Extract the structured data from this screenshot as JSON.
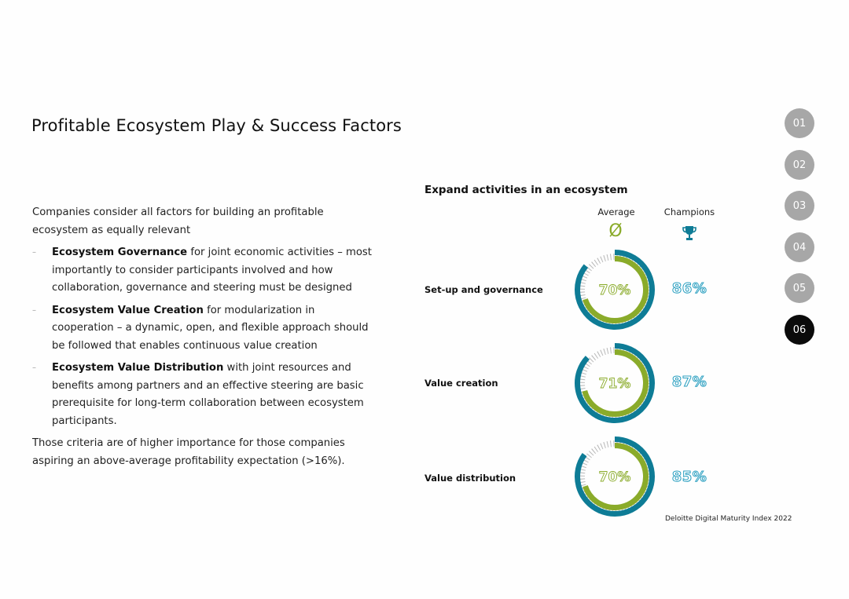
{
  "page": {
    "title": "Profitable Ecosystem Play & Success Factors"
  },
  "text": {
    "intro": "Companies consider all factors for building an profitable ecosystem as equally relevant",
    "bullets": [
      {
        "bold": "Ecosystem Governance",
        "rest": " for joint economic activities – most importantly to consider participants involved and how collaboration, governance and steering must be designed"
      },
      {
        "bold": "Ecosystem Value Creation",
        "rest": " for modularization in cooperation – a dynamic, open, and flexible approach should be followed that enables continuous value creation"
      },
      {
        "bold": "Ecosystem Value Distribution",
        "rest": " with joint resources and benefits among partners and an effective steering are basic prerequisite for long-term collaboration between ecosystem participants."
      }
    ],
    "closing": "Those criteria are of higher importance for those companies aspiring an above-average profitability expectation (>16%)."
  },
  "nav": {
    "items": [
      "01",
      "02",
      "03",
      "04",
      "05",
      "06"
    ],
    "active_index": 5
  },
  "source": "Deloitte Digital Maturity Index 2022",
  "colors": {
    "average": "#8aab2a",
    "champions": "#0e7c96",
    "champions_text": "#2a9fc0",
    "nav_inactive": "#a7a7a7",
    "nav_active": "#0b0b0b"
  },
  "icons": {
    "average": "diameter-symbol-icon",
    "champions": "trophy-icon"
  },
  "chart_data": {
    "type": "donut",
    "title": "Expand activities in an ecosystem",
    "legend": {
      "average_label": "Average",
      "average_symbol": "Ø",
      "champions_label": "Champions"
    },
    "categories": [
      "Set-up and governance",
      "Value creation",
      "Value distribution"
    ],
    "series": [
      {
        "name": "Average",
        "values": [
          70,
          71,
          70
        ],
        "labels": [
          "70%",
          "71%",
          "70%"
        ]
      },
      {
        "name": "Champions",
        "values": [
          86,
          87,
          85
        ],
        "labels": [
          "86%",
          "87%",
          "85%"
        ]
      }
    ]
  }
}
